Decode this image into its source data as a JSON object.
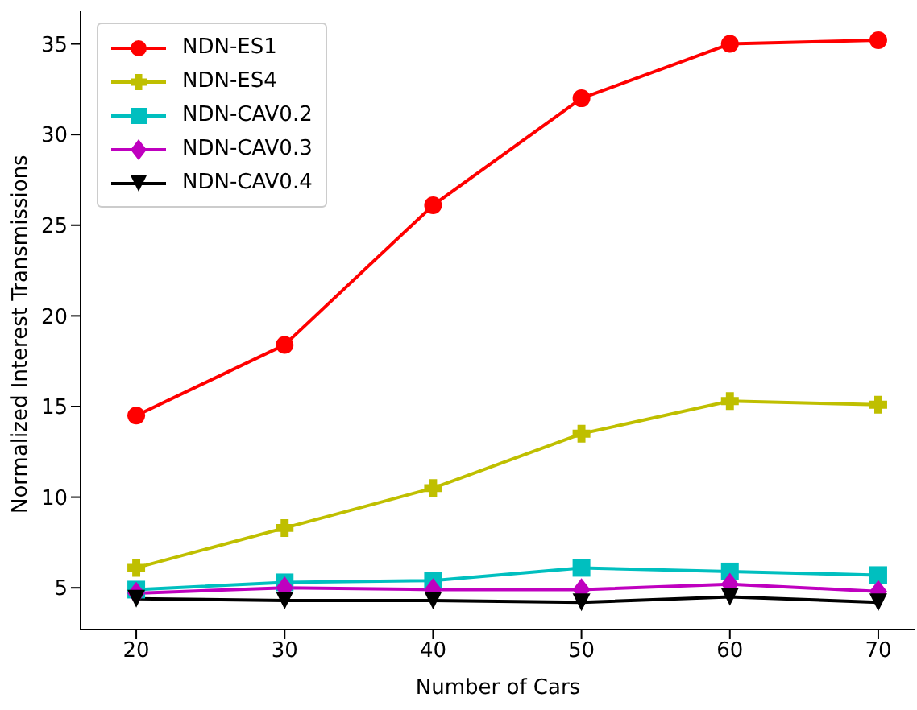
{
  "chart_data": {
    "type": "line",
    "xlabel": "Number of Cars",
    "ylabel": "Normalized Interest Transmissions",
    "x": [
      20,
      30,
      40,
      50,
      60,
      70
    ],
    "series": [
      {
        "name": "NDN-ES1",
        "color": "#ff0000",
        "marker": "circle",
        "values": [
          14.5,
          18.4,
          26.1,
          32.0,
          35.0,
          35.2
        ]
      },
      {
        "name": "NDN-ES4",
        "color": "#bfbf00",
        "marker": "cross",
        "values": [
          6.1,
          8.3,
          10.5,
          13.5,
          15.3,
          15.1
        ]
      },
      {
        "name": "NDN-CAV0.2",
        "color": "#00bfbf",
        "marker": "square",
        "values": [
          4.9,
          5.3,
          5.4,
          6.1,
          5.9,
          5.7
        ]
      },
      {
        "name": "NDN-CAV0.3",
        "color": "#bf00bf",
        "marker": "diamond",
        "values": [
          4.7,
          5.0,
          4.9,
          4.9,
          5.2,
          4.8
        ]
      },
      {
        "name": "NDN-CAV0.4",
        "color": "#000000",
        "marker": "triangle",
        "values": [
          4.4,
          4.3,
          4.3,
          4.2,
          4.5,
          4.2
        ]
      }
    ],
    "xlim": [
      16.25,
      72.5
    ],
    "xticks": [
      20,
      30,
      40,
      50,
      60,
      70
    ],
    "ylim": [
      2.7,
      36.8
    ],
    "yticks": [
      5,
      10,
      15,
      20,
      25,
      30,
      35
    ],
    "grid": false,
    "legend": "top left",
    "line_style": "solid"
  }
}
